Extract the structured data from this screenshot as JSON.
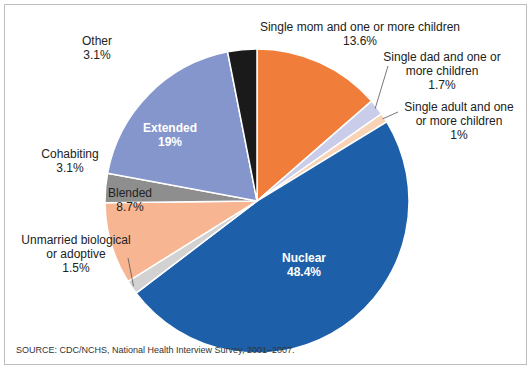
{
  "chart_data": {
    "type": "pie",
    "categories": [
      "Single mom and one or more children",
      "Single dad and one or more children",
      "Single adult and one or more children",
      "Nuclear",
      "Unmarried biological or adoptive",
      "Blended",
      "Cohabiting",
      "Extended",
      "Other"
    ],
    "values": [
      13.6,
      1.7,
      1,
      48.4,
      1.5,
      8.7,
      3.1,
      19,
      3.1
    ],
    "value_labels": [
      "13.6%",
      "1.7%",
      "1%",
      "48.4%",
      "1.5%",
      "8.7%",
      "3.1%",
      "19%",
      "3.1%"
    ],
    "colors": [
      "#f07d3a",
      "#c9cdea",
      "#f8d3b6",
      "#1d5fa8",
      "#d2d2d2",
      "#f8b592",
      "#8e8e8e",
      "#8496cc",
      "#1a1a1a"
    ],
    "data_labels": true,
    "source": "SOURCE: CDC/NCHS, National Health Interview Survey, 2001–2007."
  }
}
